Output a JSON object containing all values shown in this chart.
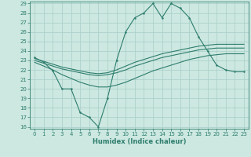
{
  "x": [
    0,
    1,
    2,
    3,
    4,
    5,
    6,
    7,
    8,
    9,
    10,
    11,
    12,
    13,
    14,
    15,
    16,
    17,
    18,
    19,
    20,
    21,
    22,
    23
  ],
  "line_main": [
    23.3,
    22.8,
    21.9,
    20.0,
    20.0,
    17.5,
    17.0,
    16.0,
    19.0,
    23.0,
    26.0,
    27.5,
    28.0,
    29.0,
    27.5,
    29.0,
    28.5,
    27.5,
    25.5,
    24.0,
    22.5,
    22.0,
    21.8,
    21.8
  ],
  "line_top": [
    23.2,
    22.9,
    22.6,
    22.3,
    22.1,
    21.9,
    21.7,
    21.6,
    21.7,
    22.0,
    22.4,
    22.8,
    23.1,
    23.4,
    23.7,
    23.9,
    24.1,
    24.3,
    24.5,
    24.6,
    24.7,
    24.7,
    24.7,
    24.7
  ],
  "line_mid": [
    23.0,
    22.7,
    22.4,
    22.1,
    21.9,
    21.7,
    21.5,
    21.4,
    21.5,
    21.7,
    22.0,
    22.4,
    22.7,
    23.0,
    23.3,
    23.5,
    23.7,
    23.9,
    24.1,
    24.2,
    24.3,
    24.3,
    24.3,
    24.3
  ],
  "line_bot": [
    22.8,
    22.4,
    22.0,
    21.5,
    21.1,
    20.7,
    20.4,
    20.2,
    20.2,
    20.4,
    20.7,
    21.1,
    21.5,
    21.9,
    22.2,
    22.5,
    22.8,
    23.1,
    23.3,
    23.5,
    23.6,
    23.7,
    23.7,
    23.7
  ],
  "bg_color": "#cce8e0",
  "grid_color": "#a8cec8",
  "line_color": "#2e7d6e",
  "xlabel": "Humidex (Indice chaleur)",
  "ylim_min": 16,
  "ylim_max": 29,
  "yticks": [
    16,
    17,
    18,
    19,
    20,
    21,
    22,
    23,
    24,
    25,
    26,
    27,
    28,
    29
  ],
  "xticks": [
    0,
    1,
    2,
    3,
    4,
    5,
    6,
    7,
    8,
    9,
    10,
    11,
    12,
    13,
    14,
    15,
    16,
    17,
    18,
    19,
    20,
    21,
    22,
    23
  ],
  "xlabel_fontsize": 6,
  "tick_fontsize": 5
}
